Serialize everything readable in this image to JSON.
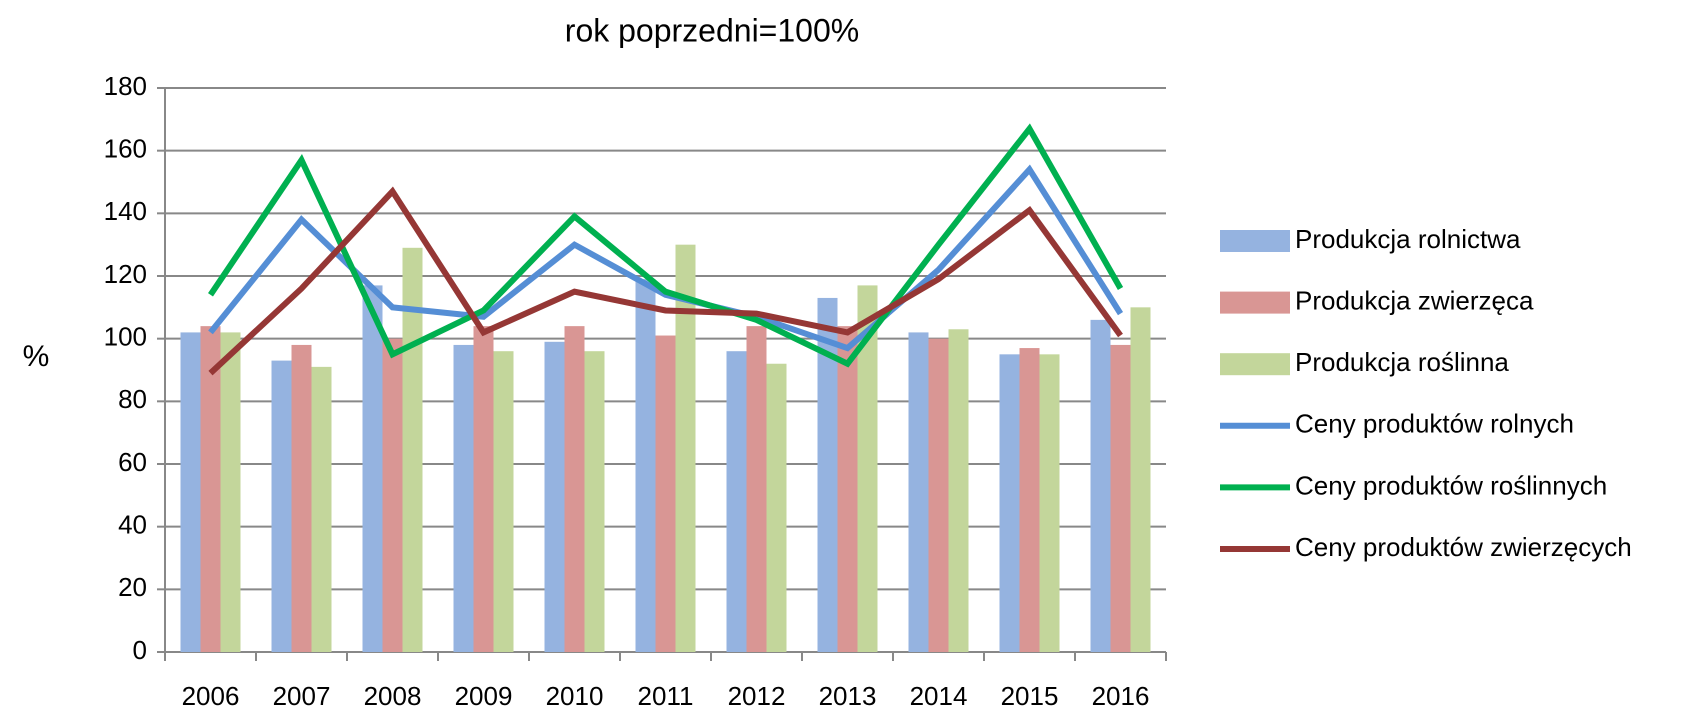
{
  "chart_data": {
    "type": "bar",
    "title": "rok poprzedni=100%",
    "y_label": "%",
    "categories": [
      "2006",
      "2007",
      "2008",
      "2009",
      "2010",
      "2011",
      "2012",
      "2013",
      "2014",
      "2015",
      "2016"
    ],
    "series": [
      {
        "name": "Produkcja rolnictwa",
        "type": "bar",
        "color": "#95b3e0",
        "values": [
          102,
          93,
          117,
          98,
          99,
          119,
          96,
          113,
          102,
          95,
          106
        ]
      },
      {
        "name": "Produkcja zwierzęca",
        "type": "bar",
        "color": "#d99694",
        "values": [
          104,
          98,
          100,
          104,
          104,
          101,
          104,
          104,
          100,
          97,
          98
        ]
      },
      {
        "name": "Produkcja roślinna",
        "type": "bar",
        "color": "#c3d69b",
        "values": [
          102,
          91,
          129,
          96,
          96,
          130,
          92,
          117,
          103,
          95,
          110
        ]
      },
      {
        "name": "Ceny produktów rolnych",
        "type": "line",
        "color": "#558ed5",
        "values": [
          102,
          138,
          110,
          107,
          130,
          114,
          107,
          97,
          122,
          154,
          108
        ]
      },
      {
        "name": "Ceny produktów roślinnych",
        "type": "line",
        "color": "#00b050",
        "values": [
          114,
          157,
          95,
          109,
          139,
          115,
          106,
          92,
          130,
          167,
          116
        ]
      },
      {
        "name": "Ceny produktów zwierzęcych",
        "type": "line",
        "color": "#953735",
        "values": [
          89,
          116,
          147,
          102,
          115,
          109,
          108,
          102,
          119,
          141,
          101
        ]
      }
    ],
    "ylim": [
      0,
      180
    ],
    "yticks": [
      0,
      20,
      40,
      60,
      80,
      100,
      120,
      140,
      160,
      180
    ],
    "grid": true,
    "legend": "right"
  }
}
